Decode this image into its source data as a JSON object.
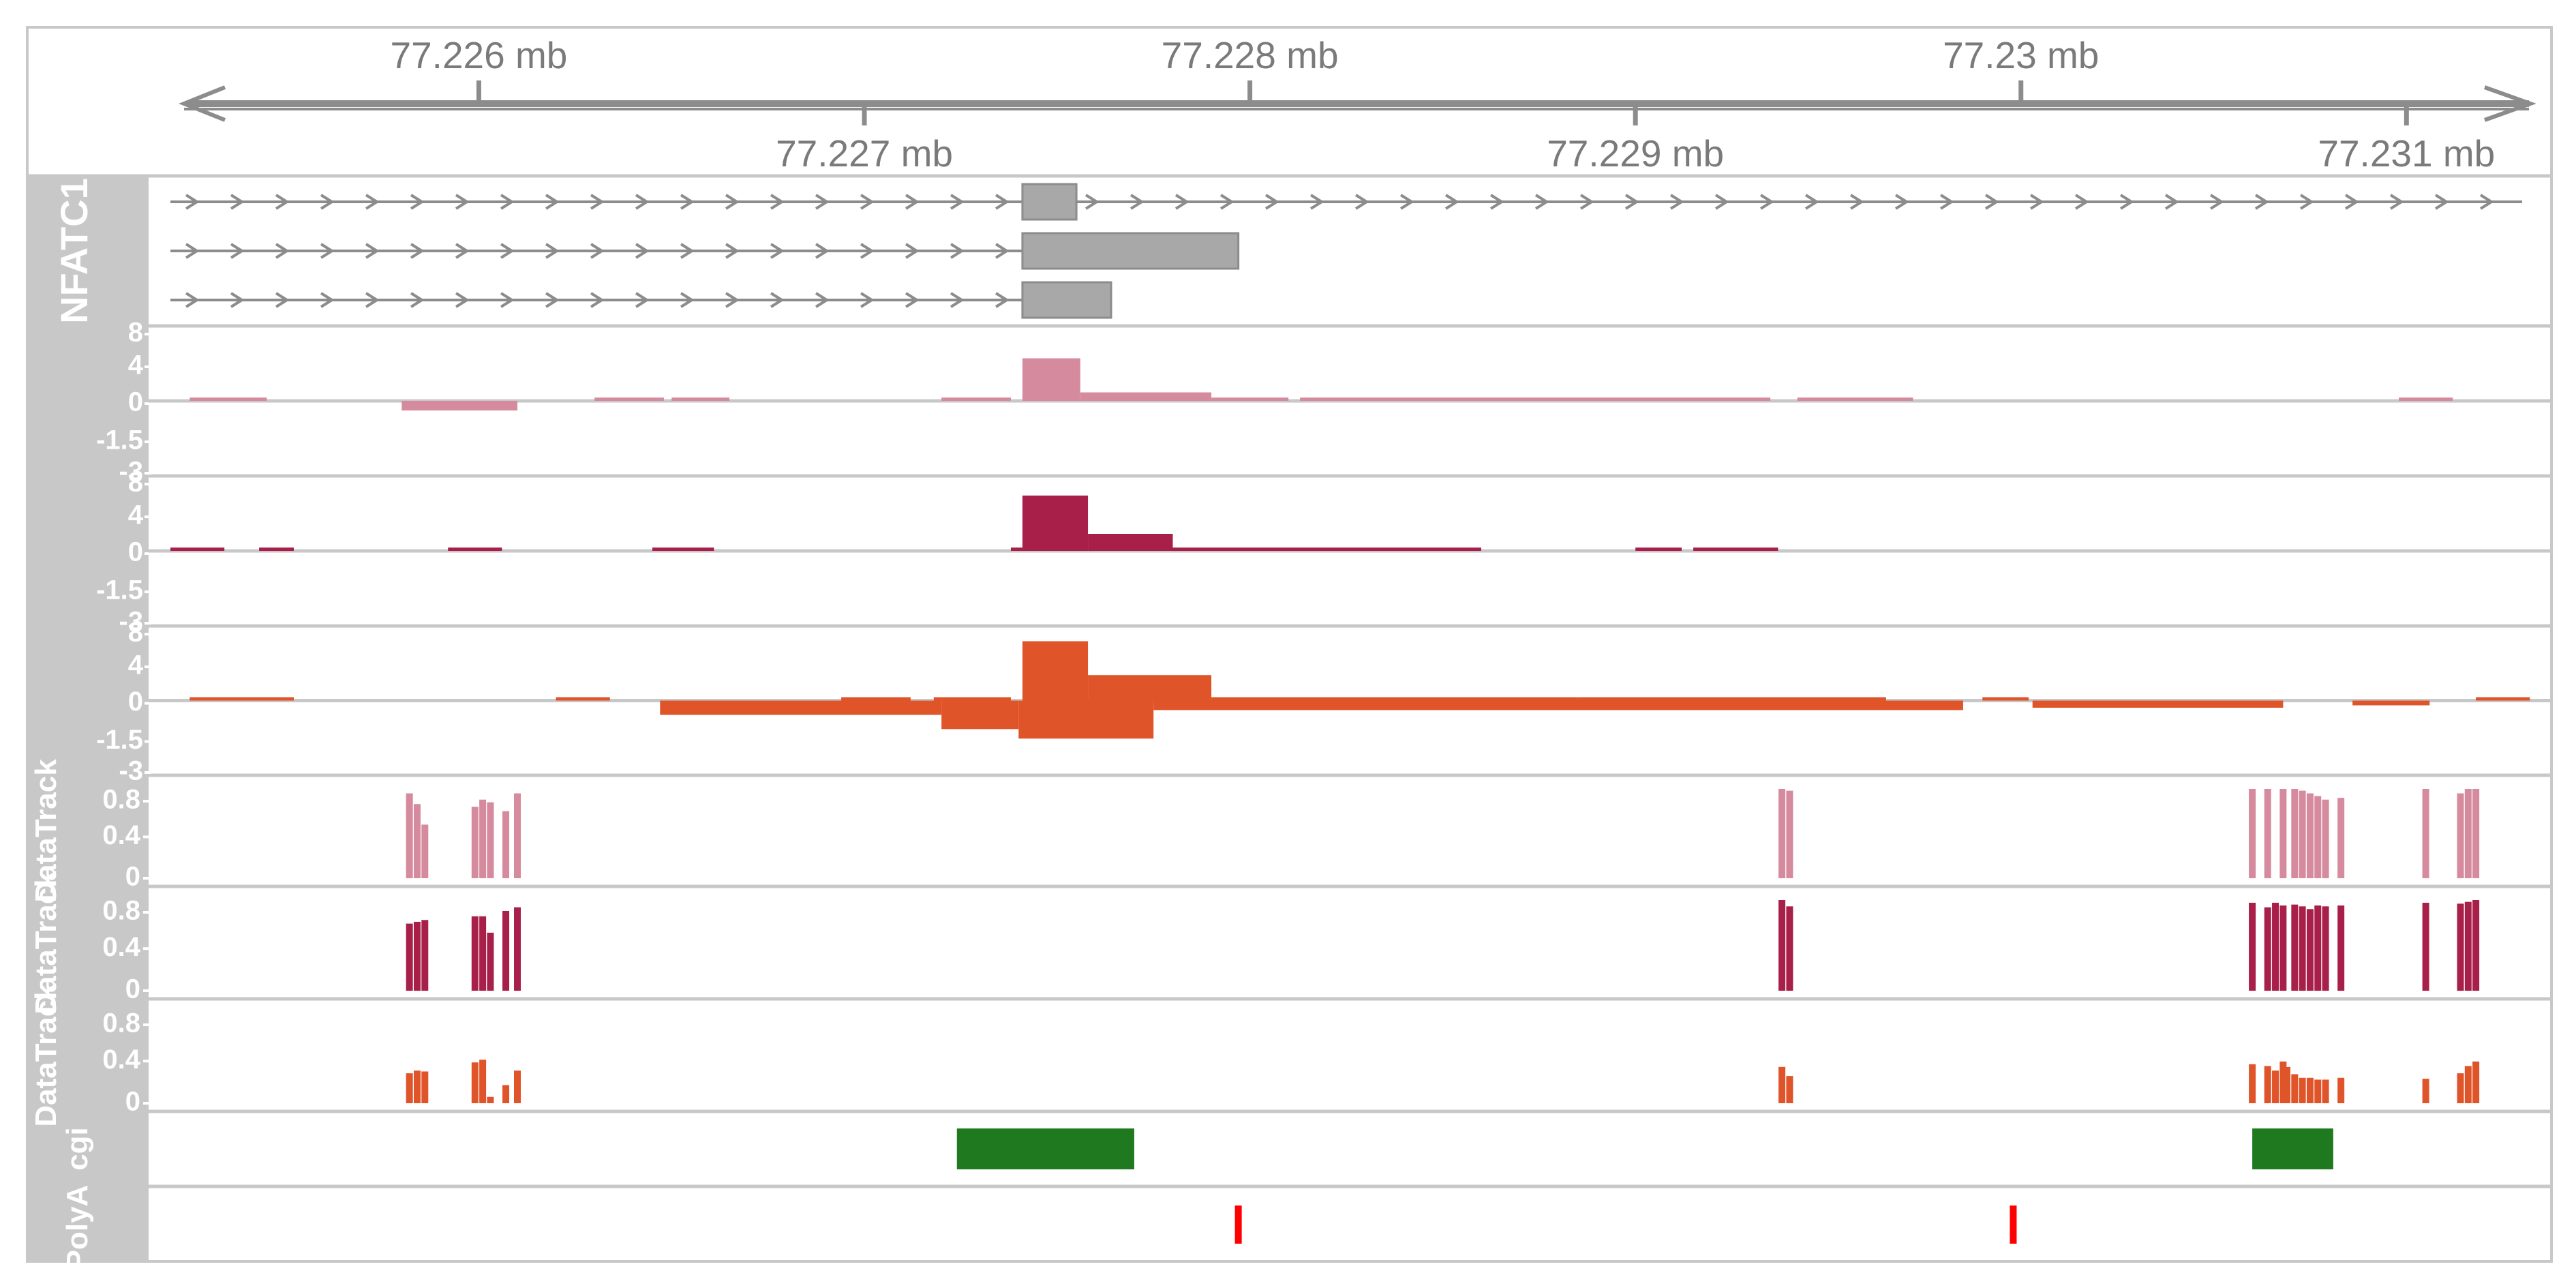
{
  "chart_data": {
    "type": "genome-browser",
    "axis": {
      "unit": "mb",
      "range": [
        77.2252,
        77.2313
      ],
      "ticks_top": [
        {
          "pos": 77.226,
          "label": "77.226 mb"
        },
        {
          "pos": 77.228,
          "label": "77.228 mb"
        },
        {
          "pos": 77.23,
          "label": "77.23 mb"
        }
      ],
      "ticks_bottom": [
        {
          "pos": 77.227,
          "label": "77.227 mb"
        },
        {
          "pos": 77.229,
          "label": "77.229 mb"
        },
        {
          "pos": 77.231,
          "label": "77.231 mb"
        }
      ]
    },
    "gene_track": {
      "name": "NFATC1",
      "color": "#a8a8a8",
      "transcripts": [
        {
          "start": 77.2252,
          "end": 77.2313,
          "exon": [
            77.22741,
            77.22755
          ]
        },
        {
          "start": 77.2252,
          "end": 77.22741,
          "exon": [
            77.22741,
            77.22797
          ]
        },
        {
          "start": 77.2252,
          "end": 77.22741,
          "exon": [
            77.22741,
            77.22764
          ]
        }
      ]
    },
    "coverage_tracks": [
      {
        "color": "#d68a9d",
        "ylim": [
          -3,
          8
        ],
        "tick_labels": [
          "8",
          "4",
          "0",
          "-1.5",
          "-3"
        ],
        "positive": [
          [
            77.22525,
            77.22545,
            0.4
          ],
          [
            77.2258,
            77.2261,
            -0.4
          ],
          [
            77.2263,
            77.22648,
            0.4
          ],
          [
            77.2265,
            77.22665,
            0.4
          ],
          [
            77.2272,
            77.22738,
            0.4
          ],
          [
            77.22741,
            77.22756,
            5.0
          ],
          [
            77.22756,
            77.2279,
            1.0
          ],
          [
            77.2279,
            77.2281,
            0.3
          ],
          [
            77.22813,
            77.22935,
            0.3
          ],
          [
            77.22942,
            77.22972,
            0.3
          ],
          [
            77.23098,
            77.23112,
            0.3
          ]
        ],
        "negative": []
      },
      {
        "color": "#a8204a",
        "ylim": [
          -3,
          8
        ],
        "tick_labels": [
          "8",
          "4",
          "0",
          "-1.5",
          "-3"
        ],
        "positive": [
          [
            77.2252,
            77.22534,
            0.3
          ],
          [
            77.22543,
            77.22552,
            0.3
          ],
          [
            77.22592,
            77.22606,
            0.3
          ],
          [
            77.22645,
            77.22661,
            0.3
          ],
          [
            77.22738,
            77.22746,
            0.3
          ],
          [
            77.22741,
            77.22758,
            6.5
          ],
          [
            77.22758,
            77.2278,
            2.0
          ],
          [
            77.2278,
            77.2286,
            0.4
          ],
          [
            77.229,
            77.22912,
            0.3
          ],
          [
            77.22915,
            77.22937,
            0.3
          ]
        ],
        "negative": []
      },
      {
        "color": "#e0542a",
        "ylim": [
          -3,
          8
        ],
        "tick_labels": [
          "8",
          "4",
          "0",
          "-1.5",
          "-3"
        ],
        "positive": [
          [
            77.22525,
            77.22552,
            0.2
          ],
          [
            77.2262,
            77.22634,
            0.3
          ],
          [
            77.22694,
            77.22712,
            0.3
          ],
          [
            77.22718,
            77.22738,
            0.3
          ],
          [
            77.22741,
            77.22758,
            7.0
          ],
          [
            77.22758,
            77.2279,
            3.0
          ],
          [
            77.2279,
            77.22885,
            0.4
          ],
          [
            77.22885,
            77.22965,
            0.3
          ],
          [
            77.2299,
            77.23002,
            0.2
          ],
          [
            77.23118,
            77.23132,
            0.2
          ]
        ],
        "negative": [
          [
            77.22647,
            77.2272,
            -0.6
          ],
          [
            77.2272,
            77.2274,
            -1.2
          ],
          [
            77.2274,
            77.22775,
            -1.6
          ],
          [
            77.22775,
            77.22985,
            -0.4
          ],
          [
            77.23003,
            77.23068,
            -0.3
          ],
          [
            77.23086,
            77.23106,
            -0.2
          ]
        ]
      }
    ],
    "signal_tracks": [
      {
        "color": "#d68a9d",
        "ylim": [
          0,
          1
        ],
        "tick_labels": [
          "0.8",
          "0.4",
          "0"
        ],
        "bars": [
          [
            77.22582,
            0.95
          ],
          [
            77.22584,
            0.83
          ],
          [
            77.22586,
            0.6
          ],
          [
            77.22599,
            0.8
          ],
          [
            77.22601,
            0.88
          ],
          [
            77.22603,
            0.85
          ],
          [
            77.22607,
            0.75
          ],
          [
            77.2261,
            0.95
          ],
          [
            77.22938,
            1.0
          ],
          [
            77.2294,
            0.98
          ],
          [
            77.2306,
            1.0
          ],
          [
            77.23064,
            1.0
          ],
          [
            77.23068,
            1.0
          ],
          [
            77.23071,
            1.0
          ],
          [
            77.23073,
            0.98
          ],
          [
            77.23075,
            0.95
          ],
          [
            77.23077,
            0.92
          ],
          [
            77.23079,
            0.88
          ],
          [
            77.23083,
            0.9
          ],
          [
            77.23105,
            1.0
          ],
          [
            77.23114,
            0.95
          ],
          [
            77.23116,
            1.0
          ],
          [
            77.23118,
            1.0
          ]
        ]
      },
      {
        "color": "#a8204a",
        "ylim": [
          0,
          1
        ],
        "tick_labels": [
          "0.8",
          "0.4",
          "0"
        ],
        "bars": [
          [
            77.22582,
            0.74
          ],
          [
            77.22584,
            0.76
          ],
          [
            77.22586,
            0.78
          ],
          [
            77.22599,
            0.82
          ],
          [
            77.22601,
            0.82
          ],
          [
            77.22603,
            0.64
          ],
          [
            77.22607,
            0.88
          ],
          [
            77.2261,
            0.92
          ],
          [
            77.22938,
            1.0
          ],
          [
            77.2294,
            0.93
          ],
          [
            77.2306,
            0.97
          ],
          [
            77.23064,
            0.92
          ],
          [
            77.23066,
            0.97
          ],
          [
            77.23068,
            0.94
          ],
          [
            77.23071,
            0.95
          ],
          [
            77.23073,
            0.93
          ],
          [
            77.23075,
            0.9
          ],
          [
            77.23077,
            0.94
          ],
          [
            77.23079,
            0.93
          ],
          [
            77.23083,
            0.94
          ],
          [
            77.23105,
            0.97
          ],
          [
            77.23114,
            0.96
          ],
          [
            77.23116,
            0.98
          ],
          [
            77.23118,
            1.0
          ]
        ]
      },
      {
        "color": "#e0542a",
        "ylim": [
          0,
          1
        ],
        "tick_labels": [
          "0.8",
          "0.4",
          "0"
        ],
        "bars": [
          [
            77.22582,
            0.33
          ],
          [
            77.22584,
            0.36
          ],
          [
            77.22586,
            0.35
          ],
          [
            77.22599,
            0.45
          ],
          [
            77.22601,
            0.48
          ],
          [
            77.22603,
            0.07
          ],
          [
            77.22607,
            0.2
          ],
          [
            77.2261,
            0.36
          ],
          [
            77.22938,
            0.4
          ],
          [
            77.2294,
            0.3
          ],
          [
            77.2306,
            0.43
          ],
          [
            77.23064,
            0.41
          ],
          [
            77.23066,
            0.36
          ],
          [
            77.23068,
            0.46
          ],
          [
            77.23069,
            0.4
          ],
          [
            77.23071,
            0.32
          ],
          [
            77.23073,
            0.28
          ],
          [
            77.23075,
            0.28
          ],
          [
            77.23077,
            0.26
          ],
          [
            77.23079,
            0.26
          ],
          [
            77.23083,
            0.28
          ],
          [
            77.23105,
            0.27
          ],
          [
            77.23114,
            0.33
          ],
          [
            77.23116,
            0.41
          ],
          [
            77.23118,
            0.46
          ]
        ]
      }
    ],
    "cgi_track": {
      "name": "cgi",
      "color": "#1f7a1f",
      "regions": [
        [
          77.22724,
          77.2277
        ],
        [
          77.2306,
          77.23081
        ]
      ]
    },
    "polya_track": {
      "name": "PolyA",
      "color": "#ff0000",
      "sites": [
        77.22797,
        77.22998
      ]
    },
    "data_track_label": "DataTrack"
  }
}
